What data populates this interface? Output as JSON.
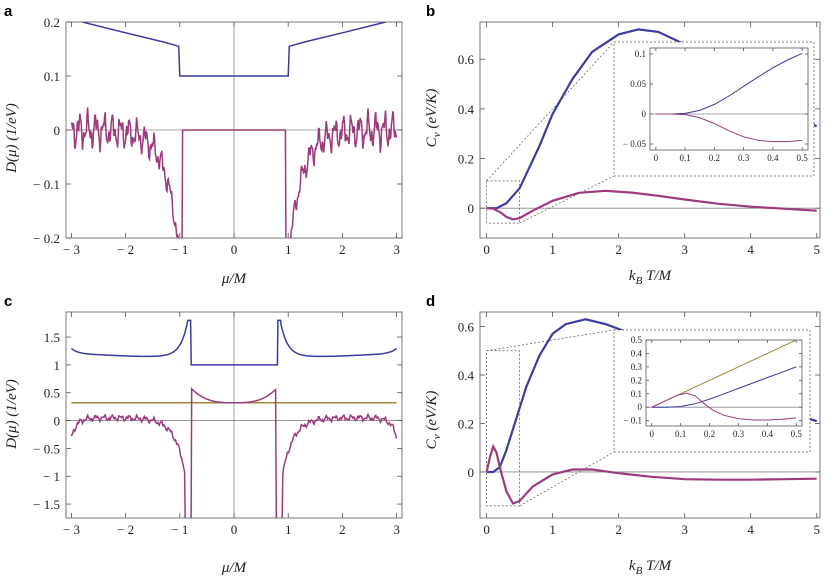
{
  "colors": {
    "blue": "#3b3ba0",
    "magenta": "#9c3a7e",
    "olive": "#9c8a3a",
    "axis": "#555555",
    "zero": "#888888"
  },
  "panels": {
    "a": {
      "letter": "a",
      "xlabel": "μ/M",
      "ylabel": "D(μ) (1/eV)"
    },
    "b": {
      "letter": "b",
      "xlabel": "k_B T/M",
      "ylabel": "C_v (eV/K)"
    },
    "c": {
      "letter": "c",
      "xlabel": "μ/M",
      "ylabel": "D(μ) (1/eV)"
    },
    "d": {
      "letter": "d",
      "xlabel": "k_B T/M",
      "ylabel": "C_v (eV/K)"
    }
  },
  "chart_data": [
    {
      "id": "a",
      "type": "line",
      "xlim": [
        -3.1,
        3.1
      ],
      "ylim": [
        -0.2,
        0.2
      ],
      "xticks": [
        -3,
        -2,
        -1,
        0,
        1,
        2,
        3
      ],
      "xtick_labels": [
        "− 3",
        "− 2",
        "− 1",
        "0",
        "1",
        "2",
        "3"
      ],
      "yticks": [
        -0.2,
        -0.1,
        0,
        0.1,
        0.2
      ],
      "ytick_labels": [
        "− 0.2",
        "− 0.1",
        "0",
        "0.1",
        "0.2"
      ],
      "series": [
        {
          "color": "blue",
          "x": [
            -2.8,
            -2.0,
            -1.3,
            -1.02,
            -1.0,
            0,
            1.0,
            1.02,
            1.3,
            2.0,
            2.8
          ],
          "y": [
            0.2,
            0.18,
            0.163,
            0.155,
            0.1,
            0.1,
            0.1,
            0.155,
            0.163,
            0.18,
            0.2
          ]
        },
        {
          "color": "magenta",
          "kind": "dos_osc",
          "gap": 1.0,
          "amp": 0.04,
          "depth": 0.2
        }
      ]
    },
    {
      "id": "b",
      "type": "line",
      "xlim": [
        -0.1,
        5.05
      ],
      "ylim": [
        -0.12,
        0.75
      ],
      "xticks": [
        0,
        1,
        2,
        3,
        4,
        5
      ],
      "xtick_labels": [
        "0",
        "1",
        "2",
        "3",
        "4",
        "5"
      ],
      "yticks": [
        0,
        0.2,
        0.4,
        0.6
      ],
      "ytick_labels": [
        "0",
        "0.2",
        "0.4",
        "0.6"
      ],
      "series": [
        {
          "color": "blue",
          "x": [
            0,
            0.15,
            0.3,
            0.5,
            0.8,
            1.0,
            1.3,
            1.6,
            2.0,
            2.3,
            2.6,
            3.0,
            3.5,
            4.0,
            4.5,
            5.0
          ],
          "y": [
            0,
            0.0,
            0.02,
            0.08,
            0.25,
            0.38,
            0.52,
            0.63,
            0.7,
            0.72,
            0.71,
            0.66,
            0.57,
            0.48,
            0.4,
            0.33
          ]
        },
        {
          "color": "magenta",
          "x": [
            0,
            0.1,
            0.2,
            0.3,
            0.4,
            0.5,
            0.7,
            1.0,
            1.4,
            1.8,
            2.2,
            2.6,
            3.0,
            3.5,
            4.0,
            4.5,
            5.0
          ],
          "y": [
            0,
            -0.002,
            -0.015,
            -0.035,
            -0.045,
            -0.04,
            -0.01,
            0.03,
            0.062,
            0.07,
            0.063,
            0.05,
            0.035,
            0.018,
            0.006,
            -0.002,
            -0.01
          ]
        }
      ],
      "inset": {
        "xlim": [
          -0.02,
          0.52
        ],
        "ylim": [
          -0.06,
          0.11
        ],
        "xticks": [
          0,
          0.1,
          0.2,
          0.3,
          0.4,
          0.5
        ],
        "xtick_labels": [
          "0",
          "0.1",
          "0.2",
          "0.3",
          "0.4",
          "0.5"
        ],
        "yticks": [
          -0.05,
          0,
          0.05,
          0.1
        ],
        "ytick_labels": [
          "− 0.05",
          "0",
          "0.05",
          "0.1"
        ],
        "series": [
          {
            "color": "blue",
            "x": [
              0,
              0.05,
              0.1,
              0.15,
              0.2,
              0.25,
              0.3,
              0.35,
              0.4,
              0.45,
              0.5
            ],
            "y": [
              0,
              0,
              0.001,
              0.006,
              0.016,
              0.03,
              0.046,
              0.062,
              0.077,
              0.09,
              0.101
            ]
          },
          {
            "color": "magenta",
            "x": [
              0,
              0.05,
              0.1,
              0.15,
              0.2,
              0.25,
              0.3,
              0.35,
              0.4,
              0.45,
              0.5
            ],
            "y": [
              0,
              0,
              -0.001,
              -0.006,
              -0.016,
              -0.028,
              -0.038,
              -0.044,
              -0.046,
              -0.046,
              -0.044
            ]
          }
        ]
      }
    },
    {
      "id": "c",
      "type": "line",
      "xlim": [
        -3.1,
        3.1
      ],
      "ylim": [
        -1.75,
        1.95
      ],
      "xticks": [
        -3,
        -2,
        -1,
        0,
        1,
        2,
        3
      ],
      "xtick_labels": [
        "− 3",
        "− 2",
        "− 1",
        "0",
        "1",
        "2",
        "3"
      ],
      "yticks": [
        -1.5,
        -1,
        -0.5,
        0,
        0.5,
        1,
        1.5
      ],
      "ytick_labels": [
        "− 1.5",
        "− 1",
        "− 0.5",
        "0",
        "0.5",
        "1",
        "1.5"
      ],
      "series": [
        {
          "color": "olive",
          "x": [
            -3.0,
            3.0
          ],
          "y": [
            0.32,
            0.32
          ]
        },
        {
          "color": "blue",
          "kind": "dos_c_blue"
        },
        {
          "color": "magenta",
          "kind": "dos_c_mag"
        }
      ]
    },
    {
      "id": "d",
      "type": "line",
      "xlim": [
        -0.1,
        5.05
      ],
      "ylim": [
        -0.19,
        0.66
      ],
      "xticks": [
        0,
        1,
        2,
        3,
        4,
        5
      ],
      "xtick_labels": [
        "0",
        "1",
        "2",
        "3",
        "4",
        "5"
      ],
      "yticks": [
        0,
        0.2,
        0.4,
        0.6
      ],
      "ytick_labels": [
        "0",
        "0.2",
        "0.4",
        "0.6"
      ],
      "series": [
        {
          "color": "blue",
          "x": [
            0,
            0.1,
            0.2,
            0.3,
            0.45,
            0.6,
            0.8,
            1.0,
            1.2,
            1.5,
            1.8,
            2.1,
            2.5,
            3.0,
            3.5,
            4.0,
            4.5,
            5.0
          ],
          "y": [
            0,
            0.0,
            0.02,
            0.09,
            0.22,
            0.35,
            0.48,
            0.57,
            0.61,
            0.63,
            0.61,
            0.58,
            0.52,
            0.44,
            0.37,
            0.3,
            0.25,
            0.21
          ]
        },
        {
          "color": "magenta",
          "x": [
            0,
            0.05,
            0.1,
            0.15,
            0.2,
            0.3,
            0.4,
            0.5,
            0.7,
            1.0,
            1.3,
            1.6,
            2.0,
            2.5,
            3.0,
            3.5,
            4.0,
            4.5,
            5.0
          ],
          "y": [
            0,
            0.06,
            0.105,
            0.08,
            0.02,
            -0.08,
            -0.13,
            -0.12,
            -0.06,
            -0.01,
            0.01,
            0.01,
            -0.005,
            -0.02,
            -0.03,
            -0.032,
            -0.032,
            -0.03,
            -0.028
          ]
        }
      ],
      "inset": {
        "xlim": [
          -0.02,
          0.52
        ],
        "ylim": [
          -0.14,
          0.5
        ],
        "xticks": [
          0,
          0.1,
          0.2,
          0.3,
          0.4,
          0.5
        ],
        "xtick_labels": [
          "0",
          "0.1",
          "0.2",
          "0.3",
          "0.4",
          "0.5"
        ],
        "yticks": [
          -0.1,
          0,
          0.1,
          0.2,
          0.3,
          0.4,
          0.5
        ],
        "ytick_labels": [
          "− 0.1",
          "0",
          "0.1",
          "0.2",
          "0.3",
          "0.4",
          "0.5"
        ],
        "series": [
          {
            "color": "olive",
            "x": [
              0,
              0.5
            ],
            "y": [
              0,
              0.5
            ]
          },
          {
            "color": "blue",
            "x": [
              0,
              0.05,
              0.1,
              0.15,
              0.2,
              0.25,
              0.3,
              0.35,
              0.4,
              0.45,
              0.5
            ],
            "y": [
              0,
              0,
              0.005,
              0.025,
              0.06,
              0.1,
              0.14,
              0.18,
              0.22,
              0.26,
              0.3
            ]
          },
          {
            "color": "magenta",
            "x": [
              0,
              0.03,
              0.06,
              0.09,
              0.12,
              0.15,
              0.18,
              0.21,
              0.25,
              0.3,
              0.35,
              0.4,
              0.45,
              0.5
            ],
            "y": [
              0,
              0.03,
              0.06,
              0.09,
              0.105,
              0.085,
              0.03,
              -0.02,
              -0.06,
              -0.085,
              -0.095,
              -0.095,
              -0.09,
              -0.08
            ]
          }
        ]
      }
    }
  ]
}
